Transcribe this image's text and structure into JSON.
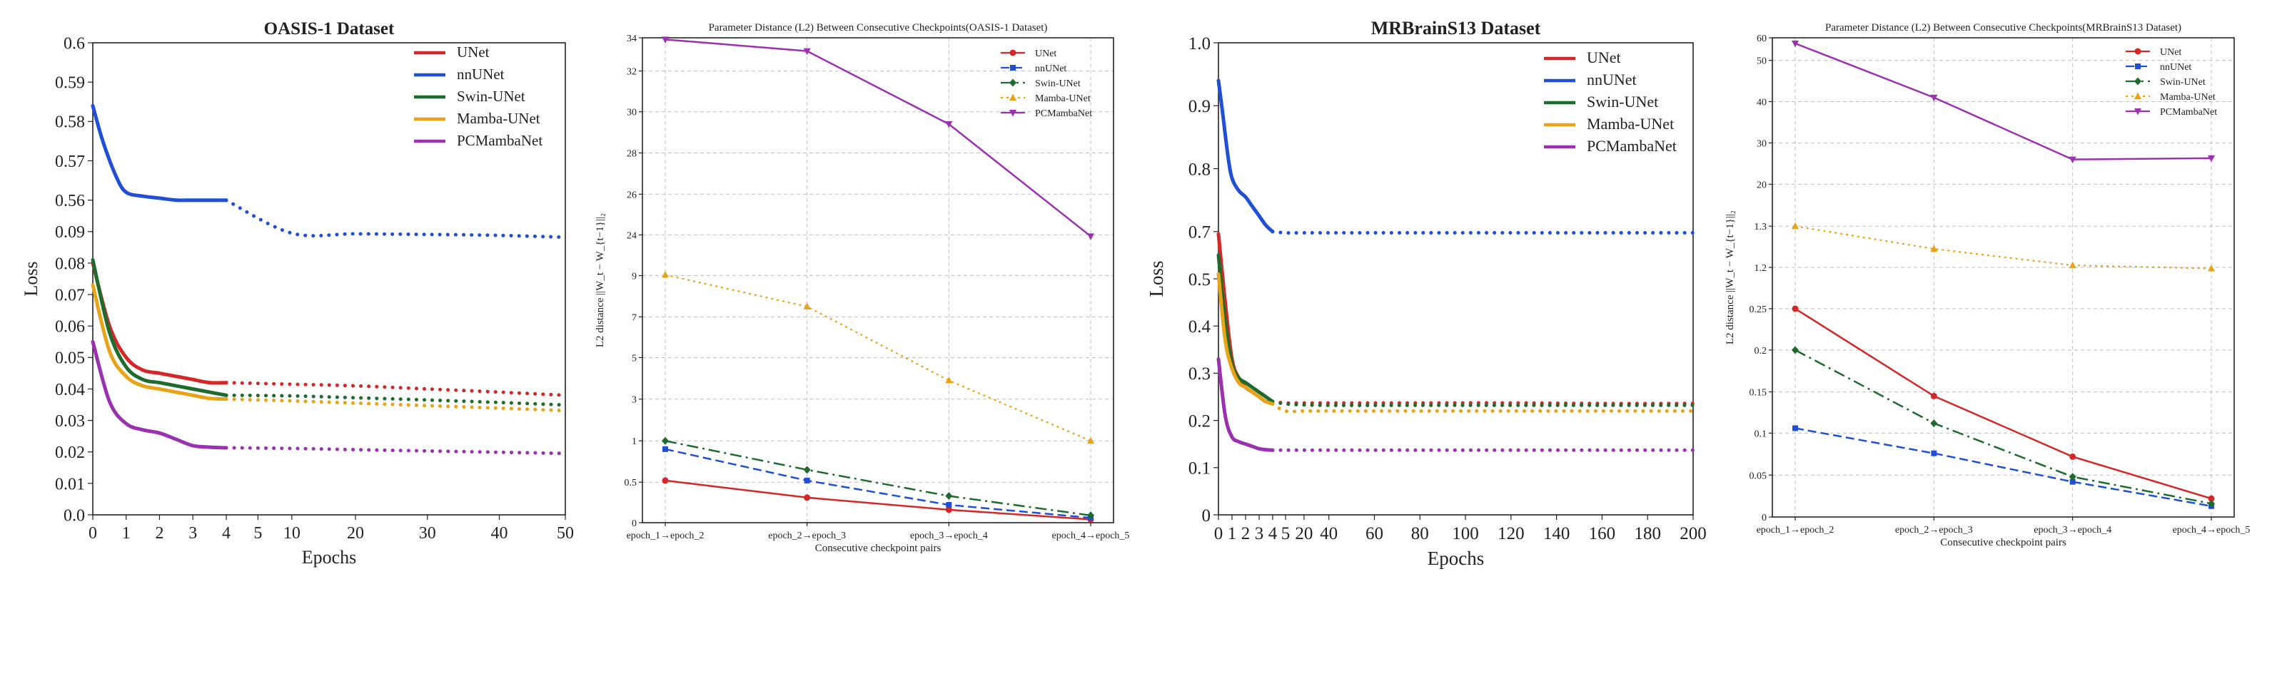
{
  "chart_data": [
    {
      "type": "line",
      "title": "OASIS-1 Dataset",
      "xlabel": "Epochs",
      "ylabel": "Loss",
      "xticks": [
        "0",
        "1",
        "2",
        "3",
        "4",
        "5",
        "10",
        "20",
        "30",
        "40",
        "50"
      ],
      "yticks": [
        "0.0",
        "0.01",
        "0.02",
        "0.03",
        "0.04",
        "0.05",
        "0.06",
        "0.07",
        "0.08",
        "0.09",
        "0.56",
        "0.57",
        "0.58",
        "0.59",
        "0.6"
      ],
      "legend_position": "top-right",
      "series": [
        {
          "name": "UNet",
          "color": "#d62728",
          "x": [
            0,
            0.5,
            1,
            1.5,
            2,
            2.5,
            3,
            3.5,
            4,
            10,
            20,
            30,
            40,
            50
          ],
          "y": [
            0.08,
            0.06,
            0.05,
            0.046,
            0.045,
            0.044,
            0.043,
            0.042,
            0.042,
            0.0415,
            0.041,
            0.04,
            0.039,
            0.038
          ]
        },
        {
          "name": "nnUNet",
          "color": "#1f4fd6",
          "x": [
            0,
            0.3,
            0.7,
            1,
            1.5,
            2,
            2.5,
            3,
            3.5,
            4,
            10,
            20,
            30,
            40,
            50
          ],
          "y": [
            0.584,
            0.575,
            0.566,
            0.562,
            0.561,
            0.5605,
            0.56,
            0.5592,
            0.5585,
            0.558,
            0.0895,
            0.0893,
            0.0891,
            0.0888,
            0.0882
          ]
        },
        {
          "name": "Swin-UNet",
          "color": "#1e6b2e",
          "x": [
            0,
            0.5,
            1,
            1.5,
            2,
            2.5,
            3,
            3.5,
            4,
            10,
            20,
            30,
            40,
            50
          ],
          "y": [
            0.081,
            0.058,
            0.047,
            0.043,
            0.042,
            0.041,
            0.04,
            0.039,
            0.038,
            0.0378,
            0.0372,
            0.0365,
            0.0357,
            0.0349
          ]
        },
        {
          "name": "Mamba-UNet",
          "color": "#e8a317",
          "x": [
            0,
            0.5,
            1,
            1.5,
            2,
            2.5,
            3,
            3.5,
            4,
            10,
            20,
            30,
            40,
            50
          ],
          "y": [
            0.073,
            0.052,
            0.044,
            0.041,
            0.04,
            0.039,
            0.038,
            0.037,
            0.0368,
            0.0362,
            0.0355,
            0.0347,
            0.0339,
            0.0331
          ]
        },
        {
          "name": "PCMambaNet",
          "color": "#9b30b0",
          "x": [
            0,
            0.5,
            1,
            1.5,
            2,
            2.5,
            3,
            3.5,
            4,
            10,
            20,
            30,
            40,
            50
          ],
          "y": [
            0.055,
            0.036,
            0.029,
            0.027,
            0.026,
            0.024,
            0.022,
            0.0215,
            0.0213,
            0.0211,
            0.0207,
            0.0203,
            0.0199,
            0.0195
          ]
        }
      ]
    },
    {
      "type": "line",
      "title": "Parameter Distance (L2) Between Consecutive Checkpoints(OASIS-1 Dataset)",
      "xlabel": "Consecutive checkpoint pairs",
      "ylabel": "L2 distance ||W_t − W_{t−1}||₂",
      "categories": [
        "epoch_1→epoch_2",
        "epoch_2→epoch_3",
        "epoch_3→epoch_4",
        "epoch_4→epoch_5"
      ],
      "yticks": [
        "0",
        "0.5",
        "1",
        "3",
        "5",
        "7",
        "9",
        "24",
        "26",
        "28",
        "30",
        "32",
        "34"
      ],
      "legend_position": "top-right",
      "series": [
        {
          "name": "UNet",
          "color": "#d62728",
          "values": [
            0.52,
            0.31,
            0.16,
            0.04
          ]
        },
        {
          "name": "nnUNet",
          "color": "#1f4fd6",
          "values": [
            0.9,
            0.52,
            0.22,
            0.06
          ]
        },
        {
          "name": "Swin-UNet",
          "color": "#1e6b2e",
          "values": [
            1.0,
            0.65,
            0.33,
            0.09
          ]
        },
        {
          "name": "Mamba-UNet",
          "color": "#e8a317",
          "values": [
            9.3,
            7.5,
            3.9,
            1.0
          ]
        },
        {
          "name": "PCMambaNet",
          "color": "#9b30b0",
          "values": [
            33.9,
            33.2,
            29.4,
            23.5
          ]
        }
      ]
    },
    {
      "type": "line",
      "title": "MRBrainS13 Dataset",
      "xlabel": "Epochs",
      "ylabel": "Loss",
      "xticks": [
        "0",
        "1",
        "2",
        "3",
        "4",
        "5",
        "20",
        "40",
        "60",
        "80",
        "100",
        "120",
        "140",
        "160",
        "180",
        "200"
      ],
      "yticks": [
        "0",
        "0.1",
        "0.2",
        "0.3",
        "0.4",
        "0.5",
        "0.7",
        "0.8",
        "0.9",
        "1.0"
      ],
      "legend_position": "top-right",
      "series": [
        {
          "name": "UNet",
          "color": "#d62728",
          "x": [
            0,
            0.5,
            1,
            1.5,
            2,
            2.5,
            3,
            3.5,
            4,
            5,
            20,
            40,
            80,
            120,
            160,
            200
          ],
          "y": [
            0.69,
            0.45,
            0.33,
            0.29,
            0.27,
            0.26,
            0.25,
            0.24,
            0.24,
            0.237,
            0.237,
            0.237,
            0.237,
            0.237,
            0.236,
            0.236
          ]
        },
        {
          "name": "nnUNet",
          "color": "#1f4fd6",
          "x": [
            0,
            0.3,
            0.7,
            1,
            1.5,
            2,
            2.5,
            3,
            3.5,
            4,
            5,
            20,
            40,
            80,
            120,
            160,
            200
          ],
          "y": [
            0.94,
            0.89,
            0.82,
            0.785,
            0.765,
            0.755,
            0.74,
            0.725,
            0.71,
            0.7,
            0.695,
            0.695,
            0.695,
            0.695,
            0.695,
            0.695,
            0.695
          ]
        },
        {
          "name": "Swin-UNet",
          "color": "#1e6b2e",
          "x": [
            0,
            0.5,
            1,
            1.5,
            2,
            2.5,
            3,
            3.5,
            4,
            5,
            20,
            40,
            80,
            120,
            160,
            200
          ],
          "y": [
            0.6,
            0.41,
            0.32,
            0.29,
            0.28,
            0.27,
            0.26,
            0.25,
            0.24,
            0.235,
            0.233,
            0.232,
            0.232,
            0.232,
            0.232,
            0.232
          ]
        },
        {
          "name": "Mamba-UNet",
          "color": "#e8a317",
          "x": [
            0,
            0.5,
            1,
            1.5,
            2,
            2.5,
            3,
            3.5,
            4,
            5,
            20,
            40,
            80,
            120,
            160,
            200
          ],
          "y": [
            0.52,
            0.37,
            0.31,
            0.28,
            0.27,
            0.26,
            0.25,
            0.24,
            0.235,
            0.22,
            0.22,
            0.22,
            0.22,
            0.22,
            0.22,
            0.22
          ]
        },
        {
          "name": "PCMambaNet",
          "color": "#9b30b0",
          "x": [
            0,
            0.5,
            1,
            1.5,
            2,
            2.5,
            3,
            3.5,
            4,
            5,
            20,
            40,
            80,
            120,
            160,
            200
          ],
          "y": [
            0.33,
            0.21,
            0.165,
            0.155,
            0.15,
            0.145,
            0.14,
            0.138,
            0.137,
            0.137,
            0.137,
            0.137,
            0.137,
            0.137,
            0.137,
            0.137
          ]
        }
      ]
    },
    {
      "type": "line",
      "title": "Parameter Distance (L2) Between Consecutive Checkpoints(MRBrainS13 Dataset)",
      "xlabel": "Consecutive checkpoint pairs",
      "ylabel": "L2 distance ||W_t − W_{t−1}||₂",
      "categories": [
        "epoch_1→epoch_2",
        "epoch_2→epoch_3",
        "epoch_3→epoch_4",
        "epoch_4→epoch_5"
      ],
      "yticks": [
        "0",
        "0.05",
        "0.1",
        "0.15",
        "0.2",
        "0.25",
        "1.2",
        "1.3",
        "20",
        "30",
        "40",
        "50",
        "60"
      ],
      "legend_position": "top-right",
      "series": [
        {
          "name": "UNet",
          "color": "#d62728",
          "values": [
            0.25,
            0.145,
            0.072,
            0.022
          ]
        },
        {
          "name": "nnUNet",
          "color": "#1f4fd6",
          "values": [
            0.106,
            0.076,
            0.042,
            0.013
          ]
        },
        {
          "name": "Swin-UNet",
          "color": "#1e6b2e",
          "values": [
            0.2,
            0.112,
            0.048,
            0.016
          ]
        },
        {
          "name": "Mamba-UNet",
          "color": "#e8a317",
          "values": [
            1.3,
            1.245,
            1.205,
            1.175
          ]
        },
        {
          "name": "PCMambaNet",
          "color": "#9b30b0",
          "values": [
            57.5,
            41.0,
            26.0,
            26.3
          ]
        }
      ]
    }
  ]
}
